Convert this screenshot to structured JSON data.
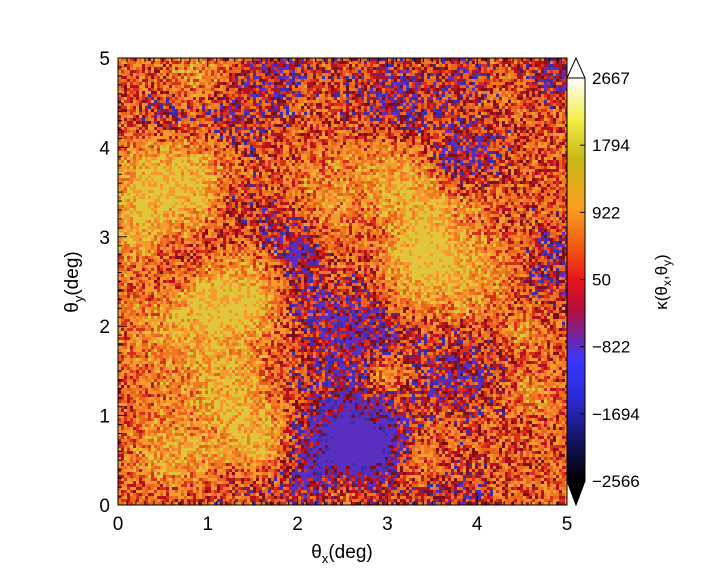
{
  "chart_data": {
    "type": "heatmap",
    "title": "",
    "xlabel": "θx(deg)",
    "xlabel_main": "θ",
    "xlabel_sub": "x",
    "xlabel_rest": "(deg)",
    "ylabel": "θy(deg)",
    "ylabel_main": "θ",
    "ylabel_sub": "y",
    "ylabel_rest": "(deg)",
    "xlim": [
      0,
      5
    ],
    "ylim": [
      0,
      5
    ],
    "xticks": [
      "0",
      "1",
      "2",
      "3",
      "4",
      "5"
    ],
    "yticks": [
      "0",
      "1",
      "2",
      "3",
      "4",
      "5"
    ],
    "colorbar": {
      "label": "κ(θx,θy)",
      "label_main": "κ(θ",
      "label_sub1": "x",
      "label_mid": ",θ",
      "label_sub2": "y",
      "label_end": ")",
      "range": [
        -2566,
        2667
      ],
      "ticks": [
        "2667",
        "1794",
        "922",
        "50",
        "-822",
        "-1694",
        "-2566"
      ],
      "tick_values": [
        2667,
        1794,
        922,
        50,
        -822,
        -1694,
        -2566
      ],
      "extend": "both",
      "colormap": [
        "#000000",
        "#1a1aa0",
        "#3a3aff",
        "#8a1fa0",
        "#e8141a",
        "#f55a12",
        "#f8a124",
        "#c8c013",
        "#f0f050",
        "#ffffff"
      ]
    },
    "field_description_values": {
      "dominant_range": [
        -822,
        922
      ],
      "cell_colors": [
        "#e8571c",
        "#f07a22",
        "#f59a2e",
        "#d8301a",
        "#b5121e",
        "#7c0e1a",
        "#3b2ea8",
        "#5a2fc0",
        "#e2c63a"
      ]
    },
    "grid": false
  }
}
